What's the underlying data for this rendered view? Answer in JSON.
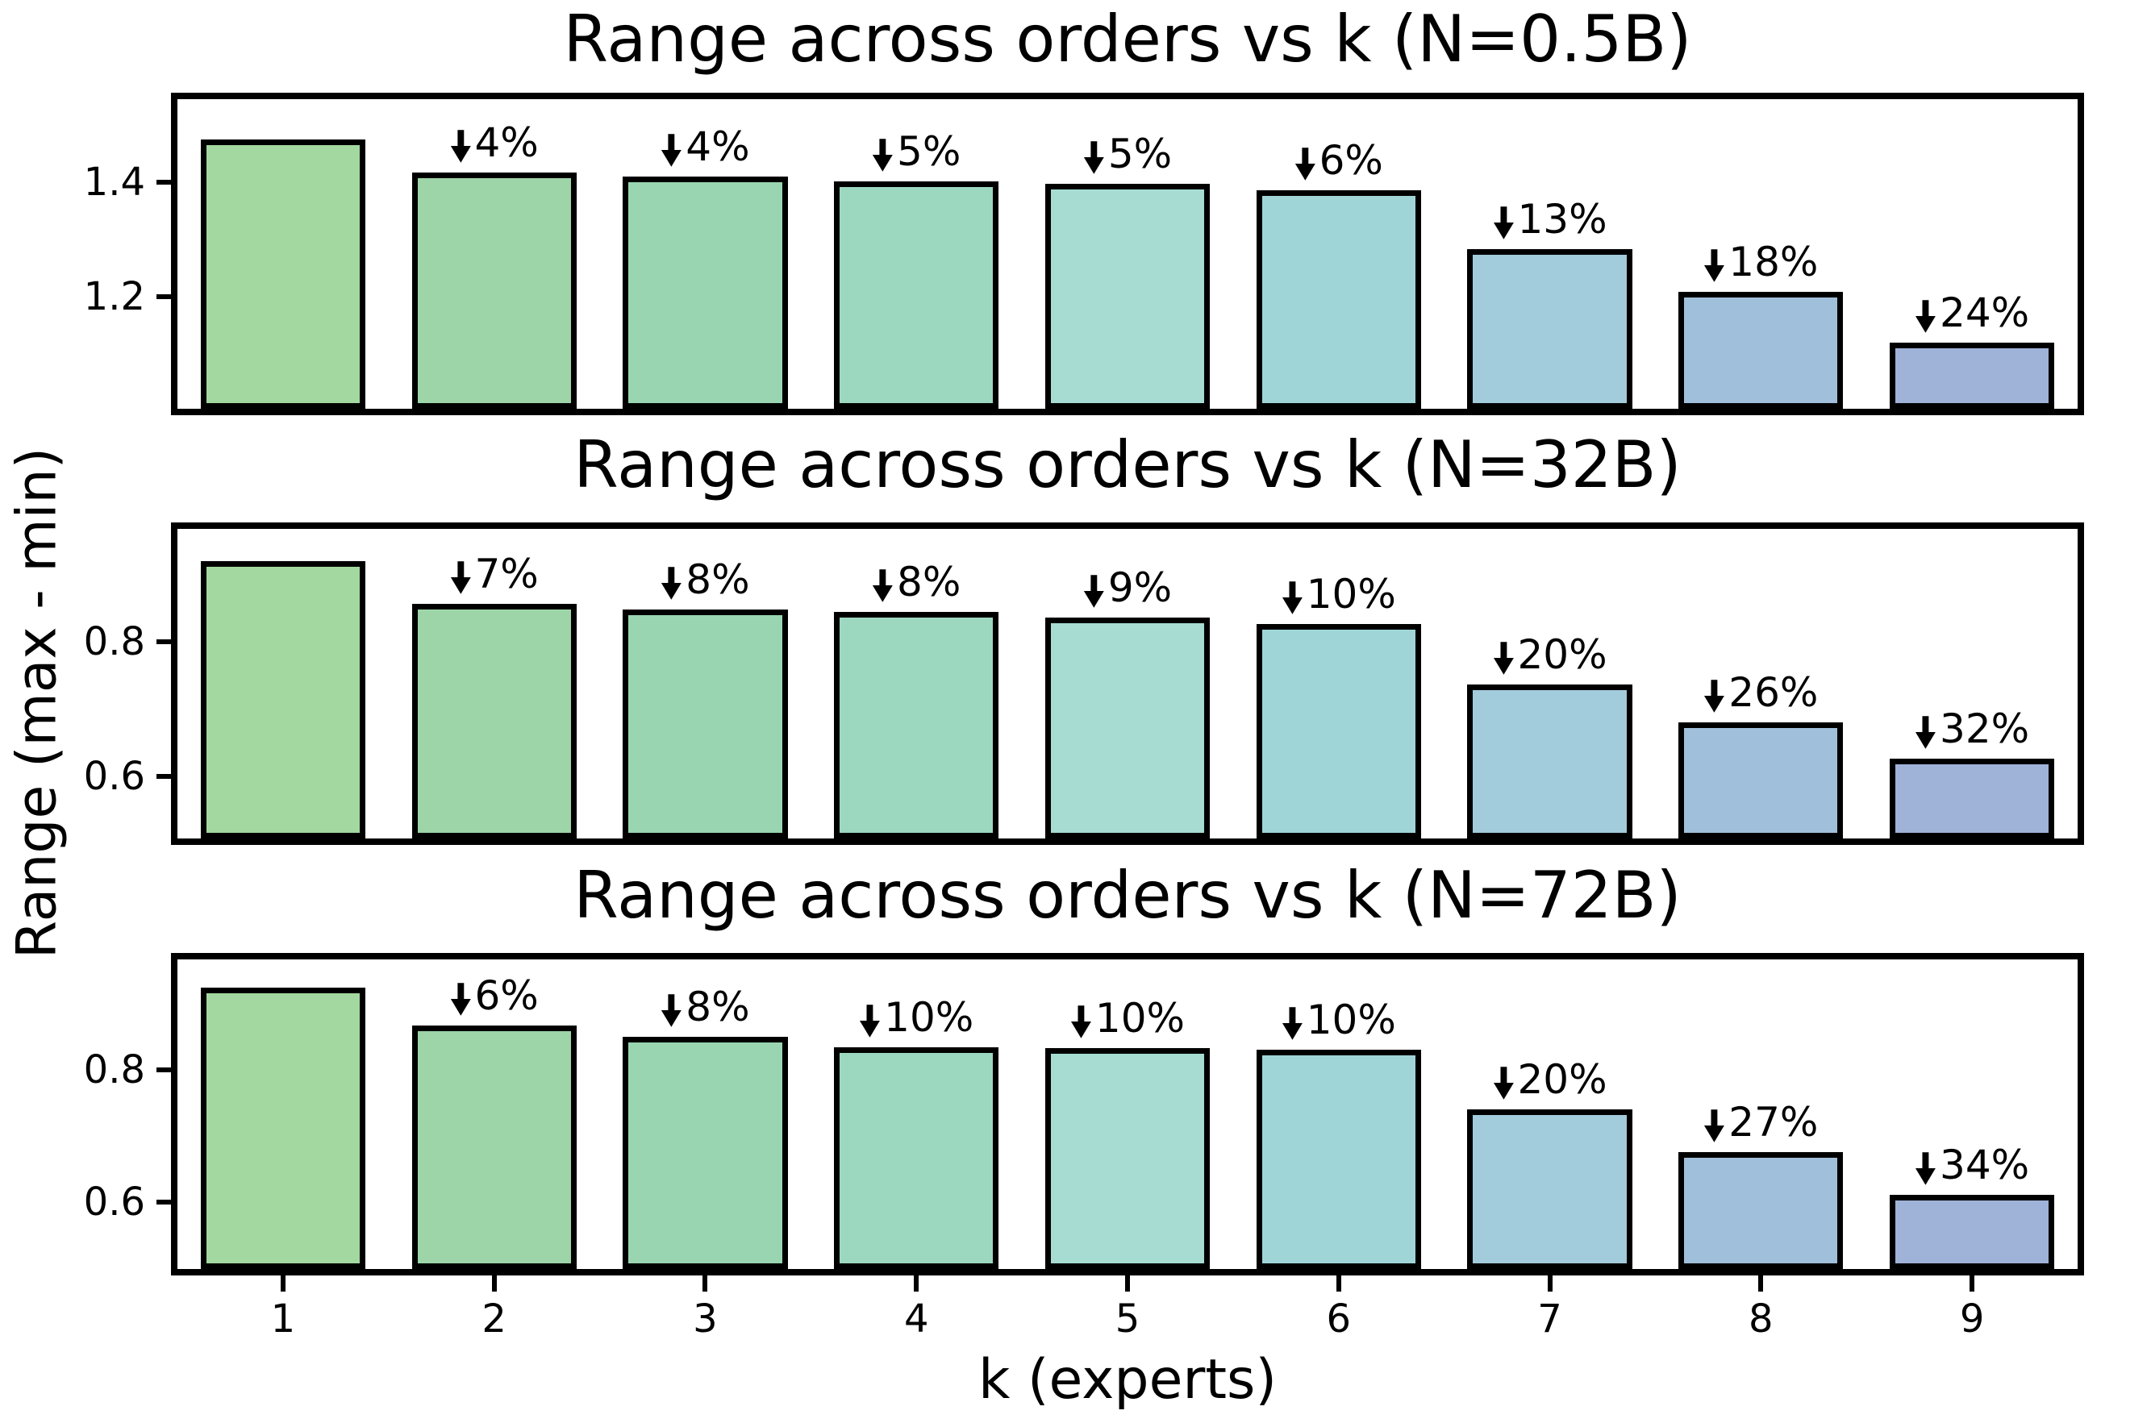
{
  "ylabel": "Range (max - min)",
  "xlabel": "k (experts)",
  "x_tick_labels": [
    "1",
    "2",
    "3",
    "4",
    "5",
    "6",
    "7",
    "8",
    "9"
  ],
  "colors": {
    "bar_edge": "#000000",
    "spine": "#000000",
    "text": "#000000",
    "bar_fill": [
      "#a3d8a0",
      "#9dd5a8",
      "#99d5b1",
      "#9cd8c0",
      "#a6dcd2",
      "#a0d5d8",
      "#a2cbdc",
      "#a0bfda",
      "#9fb2d8"
    ]
  },
  "chart_data": [
    {
      "type": "bar",
      "title": "Range across orders vs k (N=0.5B)",
      "categories": [
        1,
        2,
        3,
        4,
        5,
        6,
        7,
        8,
        9
      ],
      "values": [
        1.475,
        1.417,
        1.41,
        1.402,
        1.397,
        1.386,
        1.283,
        1.209,
        1.121
      ],
      "drop_annotations": [
        null,
        "4%",
        "4%",
        "5%",
        "5%",
        "6%",
        "13%",
        "18%",
        "24%"
      ],
      "ylim": [
        1.005,
        1.545
      ],
      "yticks": {
        "values": [
          1.2,
          1.4
        ],
        "labels": [
          "1.2",
          "1.4"
        ]
      },
      "grid": false,
      "legend": null
    },
    {
      "type": "bar",
      "title": "Range across orders vs k (N=32B)",
      "categories": [
        1,
        2,
        3,
        4,
        5,
        6,
        7,
        8,
        9
      ],
      "values": [
        0.92,
        0.857,
        0.848,
        0.845,
        0.836,
        0.827,
        0.737,
        0.681,
        0.627
      ],
      "drop_annotations": [
        null,
        "7%",
        "8%",
        "8%",
        "9%",
        "10%",
        "20%",
        "26%",
        "32%"
      ],
      "ylim": [
        0.508,
        0.968
      ],
      "yticks": {
        "values": [
          0.6,
          0.8
        ],
        "labels": [
          "0.6",
          "0.8"
        ]
      },
      "grid": false,
      "legend": null
    },
    {
      "type": "bar",
      "title": "Range across orders vs k (N=72B)",
      "categories": [
        1,
        2,
        3,
        4,
        5,
        6,
        7,
        8,
        9
      ],
      "values": [
        0.925,
        0.868,
        0.85,
        0.835,
        0.833,
        0.831,
        0.74,
        0.676,
        0.611
      ],
      "drop_annotations": [
        null,
        "6%",
        "8%",
        "10%",
        "10%",
        "10%",
        "20%",
        "27%",
        "34%"
      ],
      "ylim": [
        0.498,
        0.968
      ],
      "yticks": {
        "values": [
          0.6,
          0.8
        ],
        "labels": [
          "0.6",
          "0.8"
        ]
      },
      "grid": false,
      "legend": null
    }
  ]
}
